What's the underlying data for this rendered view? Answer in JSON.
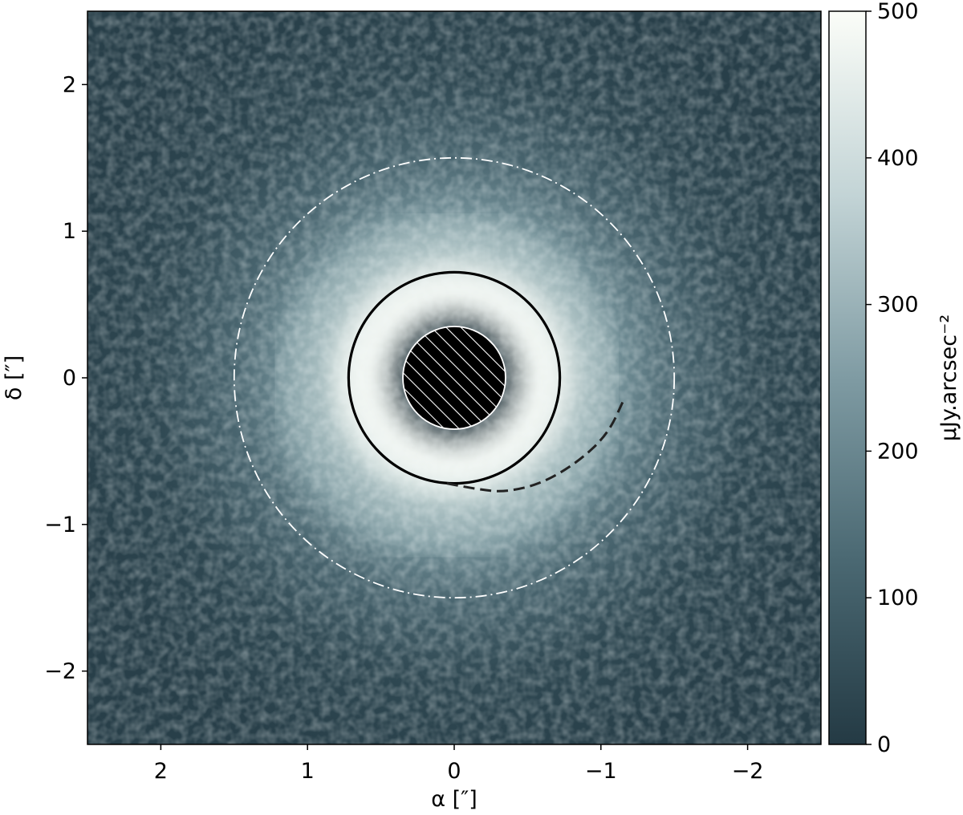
{
  "chart_data": {
    "type": "heatmap",
    "title": "",
    "xlabel": "α [″]",
    "ylabel": "δ [″]",
    "xlim": [
      2.5,
      -2.5
    ],
    "ylim": [
      -2.5,
      2.5
    ],
    "x_ticks": [
      2,
      1,
      0,
      -1,
      -2
    ],
    "x_tick_labels": [
      "2",
      "1",
      "0",
      "−1",
      "−2"
    ],
    "y_ticks": [
      2,
      1,
      0,
      -1,
      -2
    ],
    "y_tick_labels": [
      "2",
      "1",
      "0",
      "−1",
      "−2"
    ],
    "colorbar": {
      "label": "μJy.arcsec⁻²",
      "range": [
        0,
        500
      ],
      "ticks": [
        0,
        100,
        200,
        300,
        400,
        500
      ],
      "tick_labels": [
        "0",
        "100",
        "200",
        "300",
        "400",
        "500"
      ],
      "colormap": [
        "#243a44",
        "#4a6872",
        "#7f9ba3",
        "#c3d4d6",
        "#fbfdf8"
      ]
    },
    "features": {
      "bright_ring": {
        "center": [
          0.0,
          0.0
        ],
        "radius_arcsec": 0.55,
        "brightness": 500
      },
      "inner_cavity": {
        "center": [
          0.0,
          0.0
        ],
        "radius_arcsec": 0.35
      },
      "outer_halo": {
        "center": [
          0.0,
          0.0
        ],
        "radius_arcsec": 1.25,
        "brightness": 180
      }
    },
    "overlays": [
      {
        "name": "hatched-mask",
        "type": "circle",
        "center": [
          0.0,
          0.0
        ],
        "radius_arcsec": 0.35,
        "style": "hatched",
        "color": "#ffffff",
        "fill": "#000000"
      },
      {
        "name": "solid-ring",
        "type": "circle",
        "center": [
          0.0,
          0.0
        ],
        "radius_arcsec": 0.72,
        "style": "solid",
        "color": "#000000"
      },
      {
        "name": "dash-dot-ring",
        "type": "circle",
        "center": [
          0.0,
          0.0
        ],
        "radius_arcsec": 1.5,
        "style": "dash-dot",
        "color": "#ffffff"
      },
      {
        "name": "spiral-arm",
        "type": "curve",
        "style": "dashed",
        "color": "#222222",
        "points": [
          [
            0.05,
            -0.72
          ],
          [
            -0.15,
            -0.76
          ],
          [
            -0.35,
            -0.78
          ],
          [
            -0.6,
            -0.72
          ],
          [
            -0.85,
            -0.57
          ],
          [
            -1.05,
            -0.38
          ],
          [
            -1.16,
            -0.14
          ]
        ]
      }
    ],
    "grid": false,
    "legend": "none"
  }
}
